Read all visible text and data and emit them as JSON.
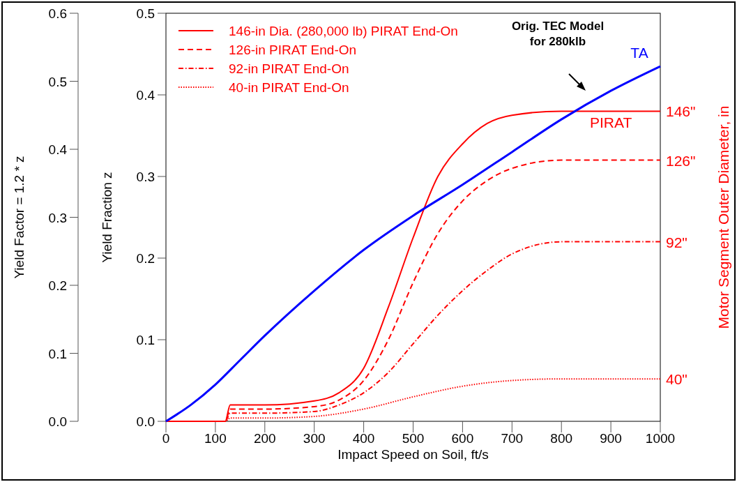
{
  "chart_data": {
    "type": "line",
    "xlabel": "Impact Speed on Soil, ft/s",
    "ylabel": "Yield Fraction z",
    "y2label": "Yield Factor = 1.2 * z",
    "xlim": [
      0,
      1000
    ],
    "xticks": [
      0,
      100,
      200,
      300,
      400,
      500,
      600,
      700,
      800,
      900,
      1000
    ],
    "ylim": [
      0,
      0.5
    ],
    "yticks": [
      {
        "value": 0,
        "label": "0.0"
      },
      0.1,
      0.2,
      0.3,
      0.4,
      0.5
    ],
    "y2lim": [
      0,
      0.6
    ],
    "y2ticks": [
      {
        "value": 0,
        "label": "0.0"
      },
      0.1,
      0.2,
      0.3,
      0.4,
      0.5,
      0.6
    ],
    "legend": "top left",
    "grid": false,
    "series": [
      {
        "name": "146-in Dia. (280,000 lb) PIRAT End-On",
        "color": "#ff0000",
        "line_style": "solid",
        "x": [
          0,
          120,
          130,
          200,
          300,
          350,
          400,
          450,
          500,
          550,
          600,
          650,
          700,
          800,
          1000
        ],
        "values": [
          0,
          0,
          0.02,
          0.02,
          0.025,
          0.035,
          0.065,
          0.14,
          0.225,
          0.3,
          0.34,
          0.365,
          0.375,
          0.38,
          0.38
        ]
      },
      {
        "name": "126-in PIRAT End-On",
        "color": "#ff0000",
        "line_style": "dashed",
        "x": [
          0,
          120,
          130,
          200,
          300,
          350,
          400,
          450,
          500,
          550,
          600,
          650,
          700,
          800,
          1000
        ],
        "values": [
          0,
          0,
          0.015,
          0.015,
          0.018,
          0.026,
          0.05,
          0.1,
          0.17,
          0.23,
          0.27,
          0.295,
          0.31,
          0.32,
          0.32
        ]
      },
      {
        "name": "92-in PIRAT End-On",
        "color": "#ff0000",
        "line_style": "dashdot",
        "x": [
          0,
          120,
          130,
          200,
          300,
          350,
          400,
          450,
          500,
          550,
          600,
          650,
          700,
          800,
          1000
        ],
        "values": [
          0,
          0,
          0.01,
          0.01,
          0.012,
          0.02,
          0.035,
          0.06,
          0.095,
          0.13,
          0.16,
          0.185,
          0.205,
          0.22,
          0.22
        ]
      },
      {
        "name": "40-in PIRAT End-On",
        "color": "#ff0000",
        "line_style": "dotted",
        "x": [
          0,
          120,
          130,
          200,
          300,
          400,
          500,
          600,
          700,
          800,
          1000
        ],
        "values": [
          0,
          0,
          0.004,
          0.004,
          0.006,
          0.015,
          0.03,
          0.043,
          0.05,
          0.052,
          0.052
        ]
      },
      {
        "color": "#0000ff",
        "line_style": "solid",
        "x": [
          0,
          50,
          100,
          150,
          200,
          300,
          400,
          500,
          600,
          700,
          800,
          900,
          1000
        ],
        "values": [
          0,
          0.02,
          0.045,
          0.075,
          0.105,
          0.16,
          0.21,
          0.252,
          0.29,
          0.33,
          0.37,
          0.405,
          0.435
        ]
      }
    ],
    "annotations": [
      {
        "text": "PIRAT",
        "x": 900,
        "y": 0.38
      },
      "Motor Segment Outer Diameter, in",
      "TA",
      "Orig. TEC Model\nfor 280klb",
      "146\"",
      "126\"",
      "92\"",
      "40\""
    ]
  }
}
